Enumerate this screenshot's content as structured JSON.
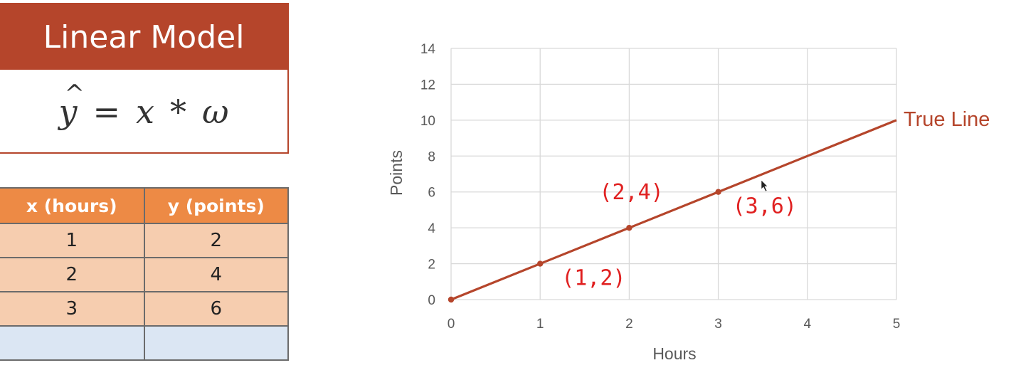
{
  "model": {
    "title": "Linear Model",
    "formula": {
      "lhs": "y",
      "hat": "^",
      "equals": "=",
      "x": "x",
      "times": "*",
      "w": "ω"
    }
  },
  "table": {
    "headers": [
      "x (hours)",
      "y (points)"
    ],
    "rows": [
      [
        "1",
        "2"
      ],
      [
        "2",
        "4"
      ],
      [
        "3",
        "6"
      ],
      [
        "",
        ""
      ]
    ]
  },
  "chart_data": {
    "type": "line",
    "xlabel": "Hours",
    "ylabel": "Points",
    "xlim": [
      0,
      5
    ],
    "ylim": [
      0,
      14
    ],
    "x_ticks": [
      0,
      1,
      2,
      3,
      4,
      5
    ],
    "y_ticks": [
      0,
      2,
      4,
      6,
      8,
      10,
      12,
      14
    ],
    "grid": true,
    "series": [
      {
        "name": "True Line",
        "x": [
          0,
          5
        ],
        "y": [
          0,
          10
        ],
        "color": "#b5452b"
      }
    ],
    "points": [
      {
        "x": 0,
        "y": 0
      },
      {
        "x": 1,
        "y": 2
      },
      {
        "x": 2,
        "y": 4
      },
      {
        "x": 3,
        "y": 6
      }
    ],
    "annotations": [
      {
        "text": "(1,2)",
        "x": 1,
        "y": 2
      },
      {
        "text": "(2,4)",
        "x": 2,
        "y": 4
      },
      {
        "text": "(3,6)",
        "x": 3,
        "y": 6
      }
    ]
  }
}
